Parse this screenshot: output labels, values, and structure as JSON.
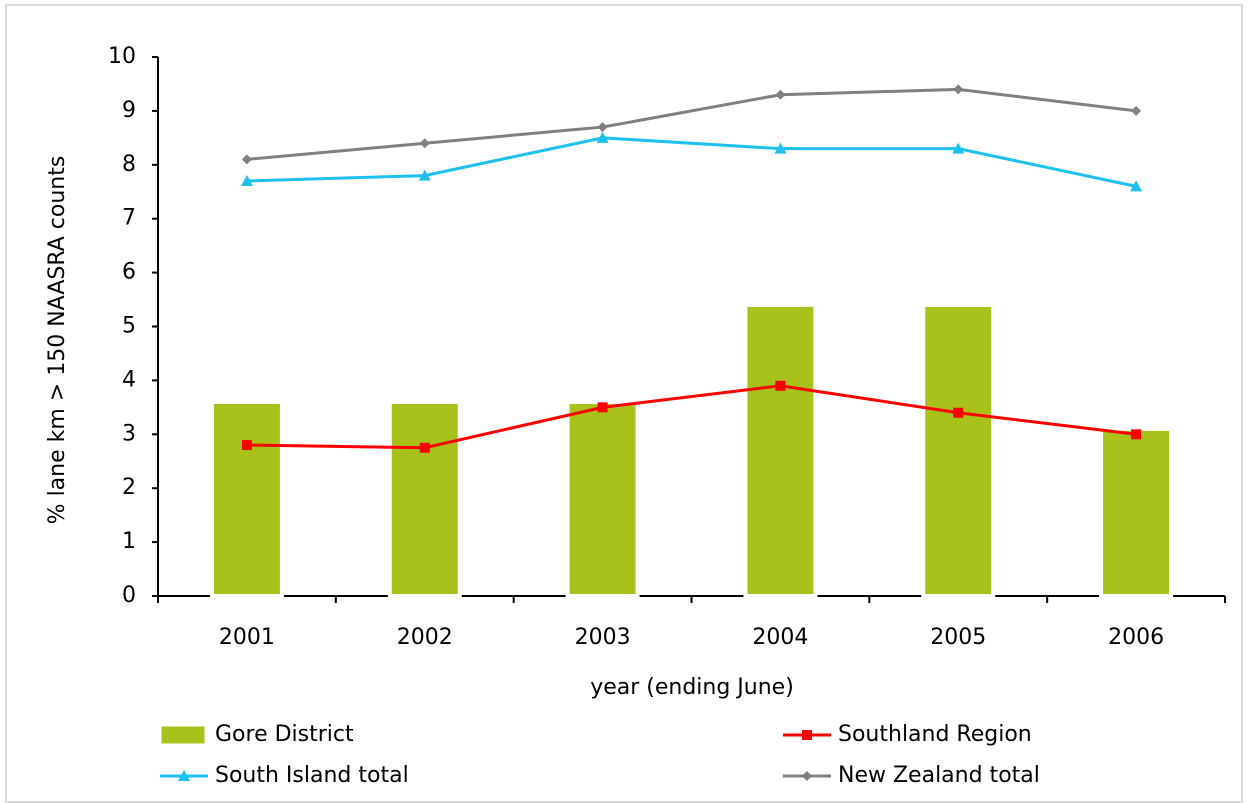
{
  "chart_data": {
    "type": "combo",
    "x_label": "year (ending June)",
    "y_label": "% lane km > 150 NAASRA counts",
    "categories": [
      "2001",
      "2002",
      "2003",
      "2004",
      "2005",
      "2006"
    ],
    "series": [
      {
        "name": "Gore District",
        "type": "bar",
        "color": "#a8c21b",
        "values": [
          3.6,
          3.6,
          3.6,
          5.4,
          5.4,
          3.1
        ]
      },
      {
        "name": "Southland Region",
        "type": "line",
        "marker": "square",
        "color": "#ff0000",
        "values": [
          2.8,
          2.75,
          3.5,
          3.9,
          3.4,
          3.0
        ]
      },
      {
        "name": "South Island total",
        "type": "line",
        "marker": "triangle",
        "color": "#1ec0f0",
        "values": [
          7.7,
          7.8,
          8.5,
          8.3,
          8.3,
          7.6
        ]
      },
      {
        "name": "New Zealand total",
        "type": "line",
        "marker": "diamond",
        "color": "#808080",
        "values": [
          8.1,
          8.4,
          8.7,
          9.3,
          9.4,
          9.0
        ]
      }
    ],
    "ylim": [
      0,
      10
    ],
    "yticks": [
      0,
      1,
      2,
      3,
      4,
      5,
      6,
      7,
      8,
      9,
      10
    ],
    "grid": false
  }
}
